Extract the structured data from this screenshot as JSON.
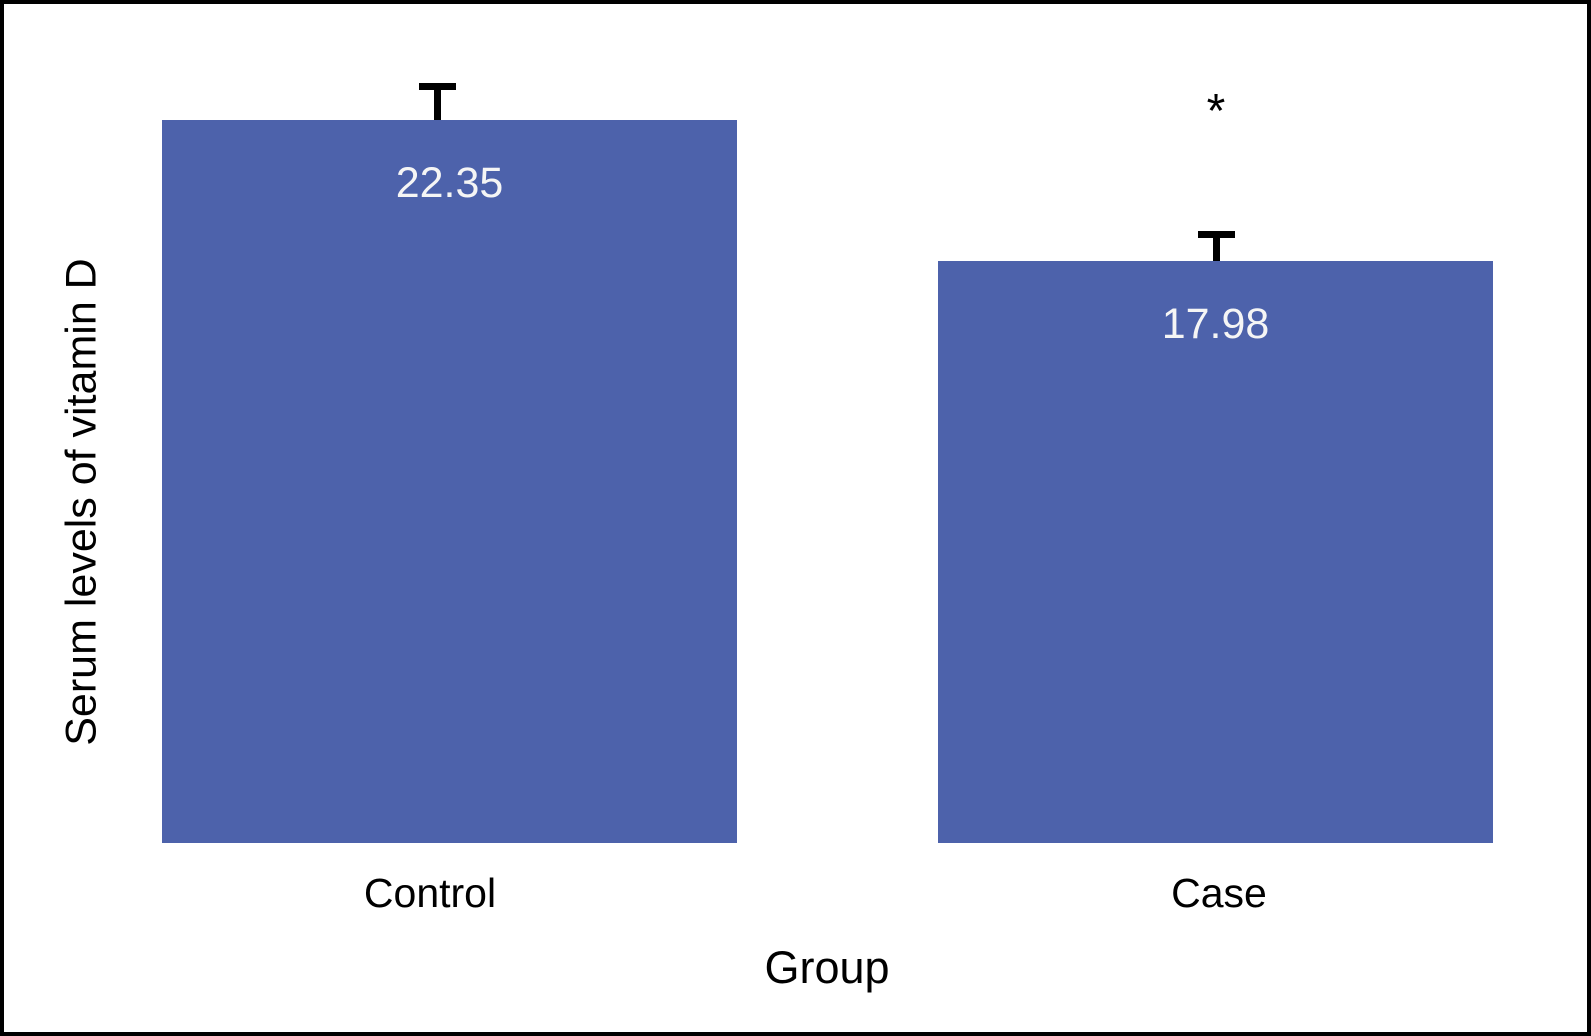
{
  "chart_data": {
    "type": "bar",
    "title": "",
    "xlabel": "Group",
    "ylabel": "Serum levels of vitamin D",
    "categories": [
      "Control",
      "Case"
    ],
    "values": [
      22.35,
      17.98
    ],
    "value_labels": [
      "22.35",
      "17.98"
    ],
    "errors": [
      1.14,
      0.93
    ],
    "significance": [
      "",
      "*"
    ],
    "ylim": [
      0,
      26
    ],
    "grid": false,
    "axes_lines_visible": false,
    "legend": null,
    "bar_color": "#4D62AB",
    "value_label_color": "#F5F5F5",
    "frame_color": "#000000"
  }
}
